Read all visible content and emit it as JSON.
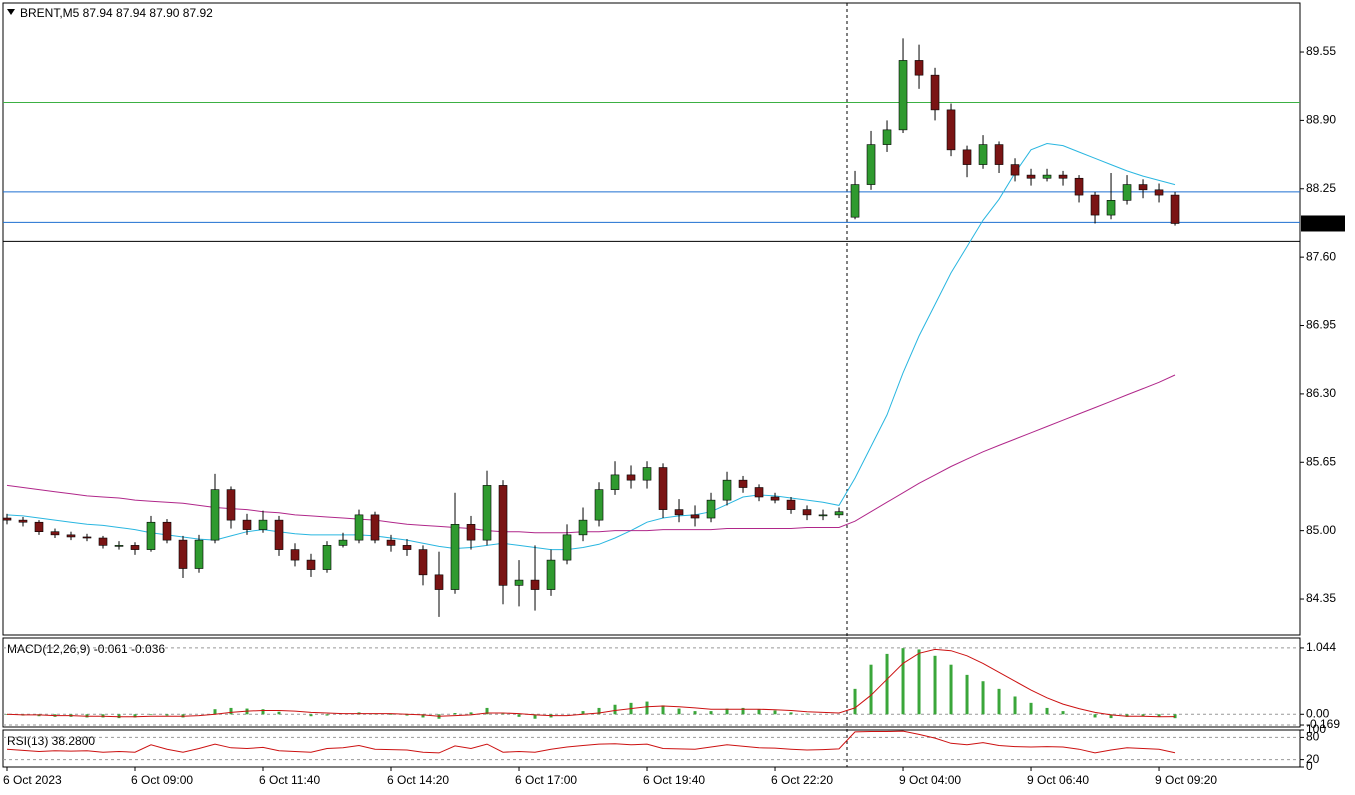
{
  "chart_data": [
    {
      "type": "candlestick",
      "title": "BRENT,M5  87.94 87.94 87.90 87.92",
      "up_color": "#2f9a2f",
      "down_color": "#7a1414",
      "xlim": [
        -0.25,
        80.81
      ],
      "ylim": [
        84.008,
        90.016
      ],
      "xticks": [
        {
          "value": 0,
          "label": "6 Oct 2023"
        },
        {
          "value": 8,
          "label": "6 Oct 09:00"
        },
        {
          "value": 16,
          "label": "6 Oct 11:40"
        },
        {
          "value": 24,
          "label": "6 Oct 14:20"
        },
        {
          "value": 32,
          "label": "6 Oct 17:00"
        },
        {
          "value": 40,
          "label": "6 Oct 19:40"
        },
        {
          "value": 48,
          "label": "6 Oct 22:20"
        },
        {
          "value": 56,
          "label": "9 Oct 04:00"
        },
        {
          "value": 64,
          "label": "9 Oct 06:40"
        },
        {
          "value": 72,
          "label": "9 Oct 09:20"
        }
      ],
      "yticks": [
        89.55,
        {
          "value": 88.9,
          "label": "88.90"
        },
        88.25,
        {
          "value": 87.6,
          "label": "87.60"
        },
        86.95,
        {
          "value": 86.3,
          "label": "86.30"
        },
        85.65,
        {
          "value": 85,
          "label": "85.00"
        },
        84.35
      ],
      "hlines": [
        {
          "value": 89.07,
          "color": "#3cb043"
        },
        {
          "value": 88.22,
          "color": "#1e6fd0"
        },
        {
          "value": 87.93,
          "color": "#1e6fd0"
        },
        {
          "value": 87.75,
          "color": "#000000"
        }
      ],
      "ohlc": [
        [
          85.12,
          85.16,
          85.06,
          85.1
        ],
        [
          85.1,
          85.13,
          85.04,
          85.08
        ],
        [
          85.08,
          85.1,
          84.96,
          84.99
        ],
        [
          84.99,
          85.02,
          84.93,
          84.96
        ],
        [
          84.96,
          84.99,
          84.91,
          84.94
        ],
        [
          84.94,
          84.97,
          84.9,
          84.93
        ],
        [
          84.93,
          84.95,
          84.83,
          84.86
        ],
        [
          84.86,
          84.9,
          84.82,
          84.86
        ],
        [
          84.86,
          84.89,
          84.77,
          84.82
        ],
        [
          84.82,
          85.14,
          84.8,
          85.08
        ],
        [
          85.08,
          85.11,
          84.88,
          84.91
        ],
        [
          84.91,
          84.95,
          84.55,
          84.64
        ],
        [
          84.64,
          84.96,
          84.6,
          84.91
        ],
        [
          84.91,
          85.54,
          84.88,
          85.39
        ],
        [
          85.39,
          85.42,
          85.02,
          85.1
        ],
        [
          85.1,
          85.16,
          84.96,
          85.01
        ],
        [
          85.01,
          85.19,
          84.98,
          85.1
        ],
        [
          85.1,
          85.14,
          84.76,
          84.82
        ],
        [
          84.82,
          84.88,
          84.66,
          84.72
        ],
        [
          84.72,
          84.78,
          84.56,
          84.63
        ],
        [
          84.63,
          84.9,
          84.6,
          84.86
        ],
        [
          84.86,
          84.98,
          84.84,
          84.91
        ],
        [
          84.91,
          85.2,
          84.88,
          85.15
        ],
        [
          85.15,
          85.18,
          84.88,
          84.91
        ],
        [
          84.91,
          84.96,
          84.8,
          84.86
        ],
        [
          84.86,
          84.92,
          84.76,
          84.82
        ],
        [
          84.82,
          84.86,
          84.48,
          84.58
        ],
        [
          84.58,
          84.8,
          84.18,
          84.44
        ],
        [
          84.44,
          85.36,
          84.4,
          85.06
        ],
        [
          85.06,
          85.14,
          84.82,
          84.91
        ],
        [
          84.91,
          85.57,
          84.86,
          85.43
        ],
        [
          85.43,
          85.48,
          84.3,
          84.48
        ],
        [
          84.48,
          84.72,
          84.28,
          84.53
        ],
        [
          84.53,
          84.86,
          84.24,
          84.44
        ],
        [
          84.44,
          84.82,
          84.38,
          84.72
        ],
        [
          84.72,
          85.06,
          84.68,
          84.96
        ],
        [
          84.96,
          85.22,
          84.9,
          85.1
        ],
        [
          85.1,
          85.46,
          85.04,
          85.39
        ],
        [
          85.39,
          85.66,
          85.34,
          85.53
        ],
        [
          85.53,
          85.62,
          85.4,
          85.48
        ],
        [
          85.48,
          85.66,
          85.4,
          85.6
        ],
        [
          85.6,
          85.64,
          85.12,
          85.2
        ],
        [
          85.2,
          85.3,
          85.08,
          85.15
        ],
        [
          85.15,
          85.24,
          85.04,
          85.12
        ],
        [
          85.12,
          85.36,
          85.08,
          85.29
        ],
        [
          85.29,
          85.56,
          85.24,
          85.48
        ],
        [
          85.48,
          85.52,
          85.36,
          85.41
        ],
        [
          85.41,
          85.44,
          85.28,
          85.32
        ],
        [
          85.32,
          85.36,
          85.26,
          85.29
        ],
        [
          85.29,
          85.32,
          85.16,
          85.2
        ],
        [
          85.2,
          85.24,
          85.1,
          85.15
        ],
        [
          85.15,
          85.2,
          85.1,
          85.15
        ],
        [
          85.15,
          85.22,
          85.12,
          85.18
        ],
        [
          87.98,
          88.42,
          87.96,
          88.29
        ],
        [
          88.29,
          88.8,
          88.24,
          88.67
        ],
        [
          88.67,
          88.9,
          88.6,
          88.81
        ],
        [
          88.81,
          89.68,
          88.78,
          89.47
        ],
        [
          89.47,
          89.62,
          89.2,
          89.33
        ],
        [
          89.33,
          89.4,
          88.9,
          89.0
        ],
        [
          89.0,
          89.06,
          88.56,
          88.62
        ],
        [
          88.62,
          88.66,
          88.36,
          88.48
        ],
        [
          88.48,
          88.76,
          88.44,
          88.67
        ],
        [
          88.67,
          88.7,
          88.4,
          88.48
        ],
        [
          88.48,
          88.54,
          88.32,
          88.38
        ],
        [
          88.38,
          88.44,
          88.28,
          88.35
        ],
        [
          88.35,
          88.44,
          88.32,
          88.38
        ],
        [
          88.38,
          88.42,
          88.28,
          88.35
        ],
        [
          88.35,
          88.38,
          88.12,
          88.19
        ],
        [
          88.19,
          88.22,
          87.92,
          88.0
        ],
        [
          88.0,
          88.4,
          87.96,
          88.14
        ],
        [
          88.14,
          88.38,
          88.1,
          88.29
        ],
        [
          88.29,
          88.34,
          88.16,
          88.24
        ],
        [
          88.24,
          88.3,
          88.12,
          88.19
        ],
        [
          88.19,
          88.22,
          87.9,
          87.92
        ]
      ],
      "series": [
        {
          "color": "#29b6e0",
          "values": [
            85.15,
            85.14,
            85.12,
            85.1,
            85.08,
            85.06,
            85.05,
            85.03,
            85.01,
            84.98,
            84.96,
            84.94,
            84.92,
            84.91,
            84.95,
            84.99,
            85.01,
            84.99,
            84.97,
            84.96,
            84.96,
            84.96,
            84.96,
            84.95,
            84.93,
            84.91,
            84.88,
            84.85,
            84.83,
            84.84,
            84.86,
            84.88,
            84.86,
            84.84,
            84.82,
            84.82,
            84.84,
            84.87,
            84.93,
            85.0,
            85.08,
            85.12,
            85.14,
            85.15,
            85.18,
            85.25,
            85.32,
            85.34,
            85.33,
            85.31,
            85.29,
            85.27,
            85.24,
            85.5,
            85.8,
            86.1,
            86.5,
            86.85,
            87.15,
            87.45,
            87.7,
            87.95,
            88.15,
            88.4,
            88.62,
            88.68,
            88.66,
            88.6,
            88.54,
            88.48,
            88.42,
            88.37,
            88.33,
            88.29
          ]
        },
        {
          "color": "#b0278a",
          "values": [
            85.43,
            85.41,
            85.39,
            85.37,
            85.35,
            85.33,
            85.32,
            85.31,
            85.29,
            85.28,
            85.27,
            85.26,
            85.24,
            85.22,
            85.21,
            85.2,
            85.18,
            85.17,
            85.15,
            85.14,
            85.13,
            85.12,
            85.11,
            85.1,
            85.08,
            85.06,
            85.05,
            85.04,
            85.03,
            85.02,
            85.0,
            84.99,
            84.99,
            84.98,
            84.98,
            84.98,
            84.99,
            84.99,
            85.0,
            85.0,
            85.0,
            85.01,
            85.01,
            85.01,
            85.01,
            85.02,
            85.02,
            85.02,
            85.02,
            85.02,
            85.03,
            85.03,
            85.03,
            85.09,
            85.18,
            85.27,
            85.36,
            85.45,
            85.53,
            85.61,
            85.68,
            85.75,
            85.81,
            85.87,
            85.93,
            85.99,
            86.05,
            86.11,
            86.17,
            86.23,
            86.29,
            86.35,
            86.41,
            86.48
          ]
        }
      ]
    },
    {
      "type": "macd",
      "title": "MACD(12,26,9) -0.061 -0.036",
      "ylim": [
        -0.2,
        1.2
      ],
      "yticks": [
        1.044,
        {
          "value": 0,
          "label": "0.00"
        },
        -0.169
      ],
      "histogram": {
        "color": "#3aa63a",
        "values": [
          -0.01,
          -0.02,
          -0.03,
          -0.04,
          -0.04,
          -0.05,
          -0.05,
          -0.06,
          -0.05,
          -0.01,
          -0.02,
          -0.05,
          0.0,
          0.08,
          0.1,
          0.09,
          0.08,
          0.04,
          0.0,
          -0.03,
          -0.02,
          0.0,
          0.03,
          0.01,
          -0.01,
          -0.02,
          -0.05,
          -0.07,
          0.02,
          0.03,
          0.1,
          0.01,
          -0.04,
          -0.07,
          -0.05,
          0.0,
          0.05,
          0.1,
          0.15,
          0.18,
          0.2,
          0.14,
          0.09,
          0.05,
          0.05,
          0.09,
          0.1,
          0.08,
          0.06,
          0.03,
          0.01,
          0.0,
          0.0,
          0.4,
          0.78,
          0.95,
          1.04,
          1.02,
          0.92,
          0.78,
          0.62,
          0.52,
          0.4,
          0.28,
          0.18,
          0.1,
          0.05,
          0.0,
          -0.05,
          -0.06,
          -0.04,
          -0.03,
          -0.04,
          -0.061
        ]
      },
      "signal": {
        "color": "#cc1111",
        "values": [
          0.0,
          -0.01,
          -0.01,
          -0.02,
          -0.02,
          -0.03,
          -0.03,
          -0.04,
          -0.04,
          -0.03,
          -0.03,
          -0.03,
          -0.02,
          0.0,
          0.03,
          0.05,
          0.06,
          0.06,
          0.05,
          0.03,
          0.02,
          0.01,
          0.01,
          0.01,
          0.01,
          0.0,
          -0.01,
          -0.03,
          -0.02,
          -0.01,
          0.02,
          0.02,
          0.01,
          -0.01,
          -0.02,
          -0.02,
          0.0,
          0.02,
          0.06,
          0.09,
          0.12,
          0.13,
          0.12,
          0.1,
          0.08,
          0.08,
          0.08,
          0.08,
          0.07,
          0.06,
          0.04,
          0.03,
          0.02,
          0.1,
          0.3,
          0.55,
          0.8,
          0.96,
          1.02,
          1.0,
          0.92,
          0.8,
          0.66,
          0.52,
          0.38,
          0.26,
          0.16,
          0.09,
          0.03,
          -0.01,
          -0.03,
          -0.03,
          -0.04,
          -0.036
        ]
      }
    },
    {
      "type": "rsi",
      "title": "RSI(13) 38.2800",
      "ylim": [
        0,
        100
      ],
      "yticks": [
        100,
        80,
        20,
        0
      ],
      "color": "#cc1111",
      "values": [
        48,
        45,
        42,
        44,
        43,
        44,
        40,
        42,
        40,
        60,
        48,
        40,
        50,
        62,
        52,
        50,
        53,
        44,
        42,
        40,
        50,
        52,
        58,
        48,
        47,
        46,
        40,
        38,
        57,
        50,
        62,
        40,
        42,
        40,
        48,
        54,
        58,
        62,
        63,
        60,
        62,
        50,
        49,
        48,
        54,
        60,
        56,
        52,
        51,
        48,
        46,
        47,
        49,
        95,
        96,
        96,
        97,
        88,
        78,
        64,
        60,
        66,
        58,
        55,
        54,
        55,
        54,
        48,
        38,
        46,
        52,
        50,
        48,
        38.28
      ]
    }
  ]
}
